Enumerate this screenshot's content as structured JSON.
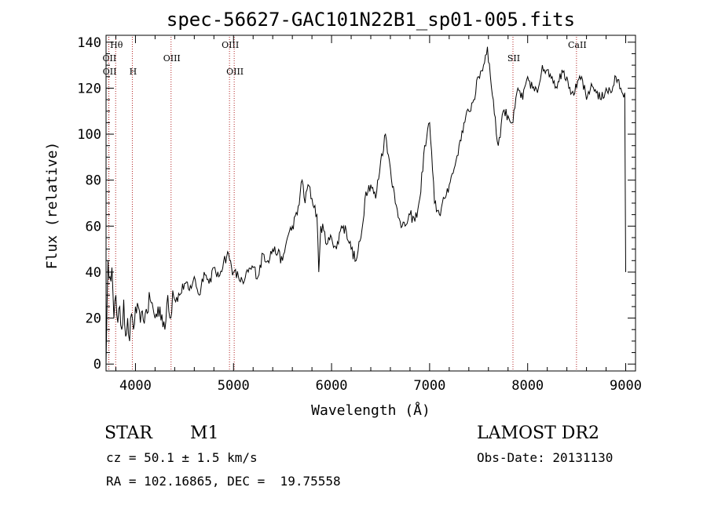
{
  "chart_data": {
    "type": "line",
    "title": "spec-56627-GAC101N22B1_sp01-005.fits",
    "xlabel": "Wavelength (Å)",
    "ylabel": "Flux (relative)",
    "xlim": [
      3700,
      9100
    ],
    "ylim": [
      -3,
      143
    ],
    "x_ticks": [
      4000,
      5000,
      6000,
      7000,
      8000,
      9000
    ],
    "y_ticks": [
      0,
      20,
      40,
      60,
      80,
      100,
      120,
      140
    ],
    "grid": false,
    "series": [
      {
        "color": "#000000",
        "x": [
          3700,
          3710,
          3720,
          3740,
          3760,
          3780,
          3800,
          3820,
          3840,
          3860,
          3880,
          3900,
          3920,
          3940,
          3960,
          3980,
          4000,
          4050,
          4100,
          4150,
          4200,
          4250,
          4300,
          4330,
          4360,
          4380,
          4400,
          4450,
          4500,
          4550,
          4600,
          4650,
          4700,
          4750,
          4800,
          4850,
          4900,
          4950,
          4980,
          5000,
          5050,
          5100,
          5150,
          5200,
          5250,
          5300,
          5350,
          5400,
          5450,
          5500,
          5550,
          5600,
          5650,
          5700,
          5730,
          5760,
          5800,
          5850,
          5870,
          5890,
          5920,
          5950,
          6000,
          6050,
          6100,
          6150,
          6200,
          6250,
          6300,
          6350,
          6400,
          6450,
          6500,
          6550,
          6600,
          6650,
          6700,
          6750,
          6800,
          6850,
          6900,
          6950,
          7000,
          7050,
          7100,
          7150,
          7200,
          7250,
          7300,
          7350,
          7400,
          7450,
          7500,
          7550,
          7590,
          7620,
          7650,
          7680,
          7700,
          7750,
          7800,
          7850,
          7900,
          7950,
          8000,
          8050,
          8100,
          8150,
          8200,
          8250,
          8300,
          8350,
          8400,
          8450,
          8500,
          8550,
          8600,
          8650,
          8700,
          8750,
          8800,
          8850,
          8900,
          8950,
          8990,
          9000
        ],
        "y": [
          0,
          25,
          45,
          38,
          42,
          20,
          30,
          18,
          25,
          15,
          28,
          12,
          20,
          10,
          22,
          15,
          25,
          18,
          22,
          28,
          20,
          25,
          15,
          30,
          20,
          32,
          28,
          30,
          35,
          32,
          38,
          30,
          40,
          35,
          42,
          38,
          45,
          48,
          42,
          40,
          38,
          35,
          40,
          42,
          38,
          48,
          45,
          50,
          48,
          45,
          55,
          60,
          65,
          80,
          70,
          78,
          72,
          65,
          40,
          60,
          58,
          52,
          55,
          50,
          60,
          58,
          50,
          45,
          55,
          75,
          78,
          72,
          88,
          100,
          85,
          70,
          62,
          60,
          65,
          62,
          72,
          95,
          105,
          70,
          65,
          72,
          78,
          85,
          95,
          105,
          110,
          115,
          125,
          130,
          138,
          125,
          115,
          100,
          95,
          110,
          108,
          105,
          120,
          115,
          125,
          120,
          118,
          130,
          128,
          125,
          120,
          128,
          125,
          118,
          120,
          125,
          115,
          122,
          118,
          115,
          120,
          118,
          125,
          120,
          118,
          40
        ]
      }
    ],
    "spectral_lines": [
      {
        "label": "Hθ",
        "x": 3798,
        "row": "top"
      },
      {
        "label": "OII",
        "x": 3727,
        "row": "upper"
      },
      {
        "label": "OII",
        "x": 3729,
        "row": "lower"
      },
      {
        "label": "H",
        "x": 3968,
        "row": "lower"
      },
      {
        "label": "OIII",
        "x": 4363,
        "row": "upper"
      },
      {
        "label": "OIII",
        "x": 4959,
        "row": "top"
      },
      {
        "label": "OIII",
        "x": 5007,
        "row": "lower"
      },
      {
        "label": "SII",
        "x": 7850,
        "row": "upper"
      },
      {
        "label": "CaII",
        "x": 8498,
        "row": "top"
      }
    ],
    "line_color": "#b22222"
  },
  "info": {
    "object_class": "STAR",
    "subclass": "M1",
    "survey": "LAMOST DR2",
    "cz": "cz = 50.1 ± 1.5 km/s",
    "obs_date": "Obs-Date: 20131130",
    "coords": "RA = 102.16865, DEC =  19.75558"
  }
}
